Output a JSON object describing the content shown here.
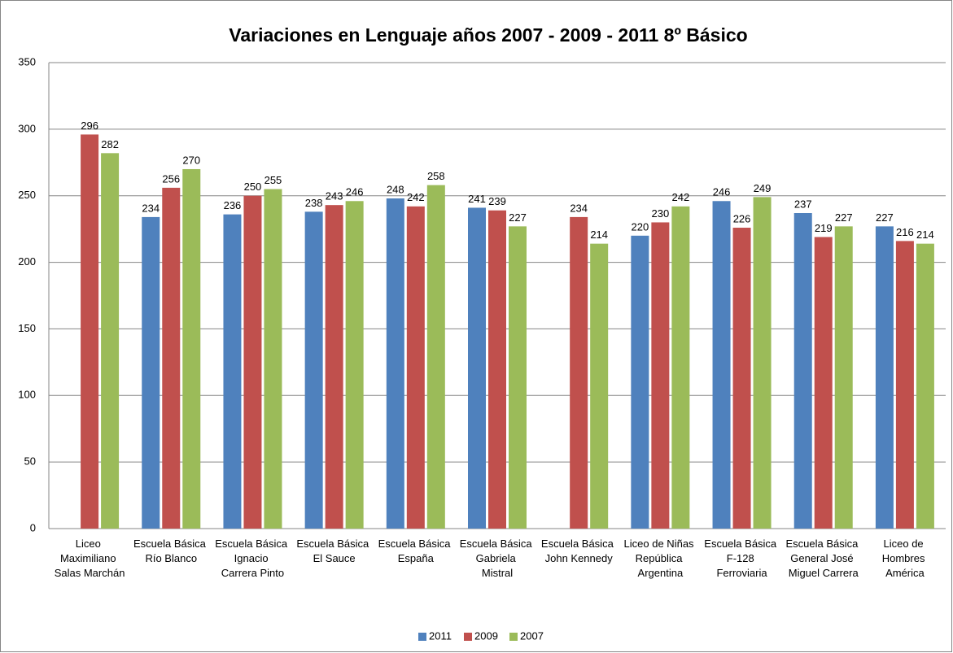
{
  "chart_data": {
    "type": "bar",
    "title": "Variaciones en Lenguaje años 2007 - 2009 - 2011 8º Básico",
    "categories": [
      "Liceo Maximiliano Salas Marchán",
      "Escuela Básica Río Blanco",
      "Escuela Básica Ignacio Carrera Pinto",
      "Escuela Básica El Sauce",
      "Escuela Básica España",
      "Escuela Básica Gabriela Mistral",
      "Escuela Básica John Kennedy",
      "Liceo de Niñas República Argentina",
      "Escuela Básica F-128 Ferroviaria",
      "Escuela Básica General José Miguel Carrera",
      "Liceo de Hombres América"
    ],
    "series": [
      {
        "name": "2011",
        "color": "#4f81bd",
        "values": [
          null,
          234,
          236,
          238,
          248,
          241,
          null,
          220,
          246,
          237,
          227
        ]
      },
      {
        "name": "2009",
        "color": "#c0504d",
        "values": [
          296,
          256,
          250,
          243,
          242,
          239,
          234,
          230,
          226,
          219,
          216
        ]
      },
      {
        "name": "2007",
        "color": "#9bbb59",
        "values": [
          282,
          270,
          255,
          246,
          258,
          227,
          214,
          242,
          249,
          227,
          214
        ]
      }
    ],
    "ylim": [
      0,
      350
    ],
    "yticks": [
      0,
      50,
      100,
      150,
      200,
      250,
      300,
      350
    ],
    "grid": true,
    "legend": "bottom"
  }
}
